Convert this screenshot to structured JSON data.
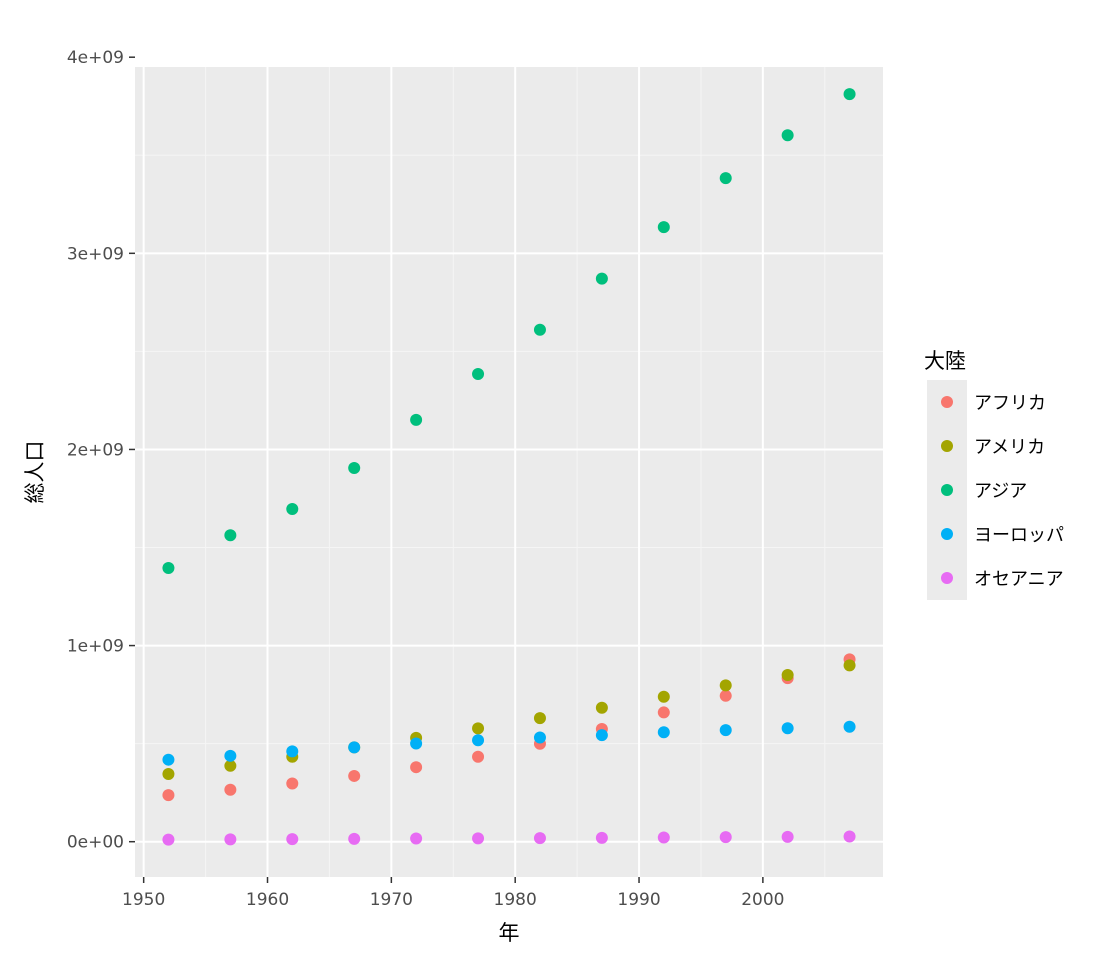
{
  "chart_data": {
    "type": "scatter",
    "title": "",
    "xlabel": "年",
    "ylabel": "総人口",
    "xlim": [
      1949.3,
      2009.7
    ],
    "ylim": [
      -180000000,
      3950000000
    ],
    "x_ticks": [
      1950,
      1960,
      1970,
      1980,
      1990,
      2000
    ],
    "x_tick_labels": [
      "1950",
      "1960",
      "1970",
      "1980",
      "1990",
      "2000"
    ],
    "y_ticks": [
      0,
      1000000000,
      2000000000,
      3000000000,
      4000000000
    ],
    "y_tick_labels": [
      "0e+00",
      "1e+09",
      "2e+09",
      "3e+09",
      "4e+09"
    ],
    "grid": true,
    "legend_title": "大陸",
    "legend_position": "right",
    "x": [
      1952,
      1957,
      1962,
      1967,
      1972,
      1977,
      1982,
      1987,
      1992,
      1997,
      2002,
      2007
    ],
    "series": [
      {
        "name": "アフリカ",
        "color": "#F8766D",
        "values": [
          237640501,
          264837738,
          296516865,
          335289489,
          379879541,
          433061021,
          499348587,
          574834110,
          659081517,
          743832984,
          833723916,
          929539692
        ]
      },
      {
        "name": "アメリカ",
        "color": "#A3A500",
        "values": [
          345152446,
          386953916,
          433270254,
          480746623,
          529384194,
          578067699,
          630290920,
          682753971,
          739274104,
          796900410,
          849772762,
          898871184
        ]
      },
      {
        "name": "アジア",
        "color": "#00BF7D",
        "values": [
          1395357352,
          1562780599,
          1696357182,
          1905662900,
          2150972248,
          2384513556,
          2610135582,
          2871220762,
          3133292191,
          3383285500,
          3601802203,
          3811953827
        ]
      },
      {
        "name": "ヨーロッパ",
        "color": "#00B0F6",
        "values": [
          418120846,
          437890351,
          460355155,
          481178958,
          500635059,
          517164531,
          531266901,
          543094160,
          558142797,
          568944148,
          578223869,
          586098529
        ]
      },
      {
        "name": "オセアニア",
        "color": "#E76BF3",
        "values": [
          10686006,
          11941976,
          13283518,
          14600414,
          16106332,
          16738634,
          18093630,
          19533140,
          21290390,
          23148430,
          24676150,
          26304000
        ]
      }
    ]
  }
}
